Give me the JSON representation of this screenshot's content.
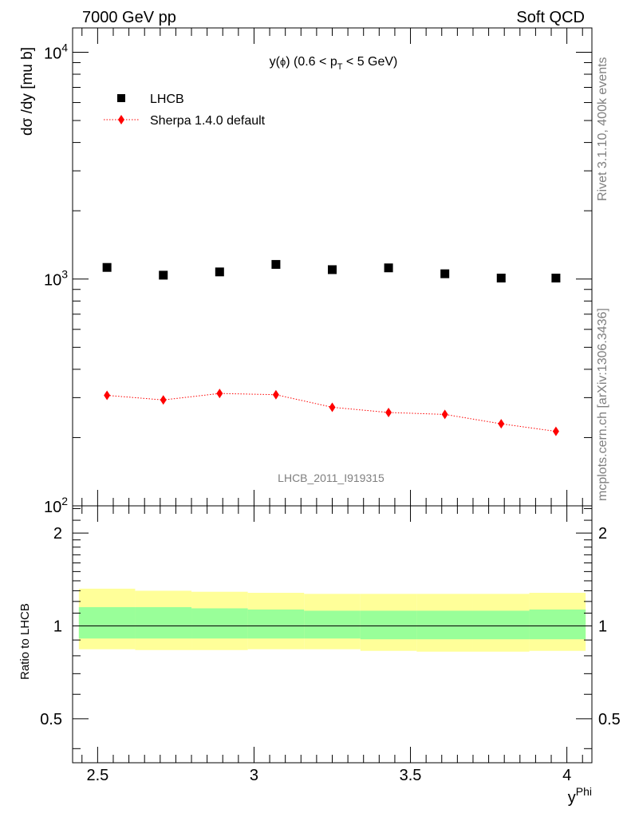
{
  "header": {
    "left_label": "7000 GeV pp",
    "right_label": "Soft QCD"
  },
  "side_labels": {
    "rivet": "Rivet 3.1.10,  400k events",
    "mcplots": "mcplots.cern.ch [arXiv:1306.3436]"
  },
  "chart_data": [
    {
      "type": "scatter",
      "title": "y(ϕ) (0.6 < p_T < 5 GeV)",
      "title_parts": {
        "main": "y(",
        "phi": "ϕ",
        "mid": ") (0.6 < p",
        "sub": "T",
        "tail": " < 5 GeV)"
      },
      "analysis_tag": "LHCB_2011_I919315",
      "ylabel": "dσ /dy [mu b]",
      "yscale": "log",
      "ylim": [
        100,
        12800
      ],
      "xlim": [
        2.42,
        4.08
      ],
      "y_major_ticks": [
        {
          "value": 100,
          "label": "10",
          "exp": "2"
        },
        {
          "value": 1000,
          "label": "10",
          "exp": "3"
        },
        {
          "value": 10000,
          "label": "10",
          "exp": "4"
        }
      ],
      "legend": [
        {
          "label": "LHCB",
          "marker": "square",
          "color": "#000000"
        },
        {
          "label": "Sherpa 1.4.0 default",
          "marker": "diamond",
          "color": "#ff0000",
          "line": "dotted"
        }
      ],
      "x": [
        2.53,
        2.71,
        2.89,
        3.07,
        3.25,
        3.43,
        3.61,
        3.79,
        3.965
      ],
      "series": [
        {
          "name": "LHCB",
          "values": [
            1125,
            1040,
            1075,
            1160,
            1100,
            1120,
            1055,
            1010,
            1010
          ]
        },
        {
          "name": "Sherpa 1.4.0 default",
          "values": [
            307,
            293,
            313,
            309,
            272,
            258,
            253,
            230,
            213
          ]
        }
      ]
    },
    {
      "type": "area",
      "ylabel": "Ratio to LHCB",
      "xlabel": "y",
      "xlabel_sup": "Phi",
      "xlim": [
        2.42,
        4.08
      ],
      "ylim": [
        0.36,
        2.45
      ],
      "y_ticks": [
        {
          "value": 0.5,
          "label": "0.5"
        },
        {
          "value": 1,
          "label": "1"
        },
        {
          "value": 2,
          "label": "2"
        }
      ],
      "x_ticks": [
        {
          "value": 2.5,
          "label": "2.5"
        },
        {
          "value": 3,
          "label": "3"
        },
        {
          "value": 3.5,
          "label": "3.5"
        },
        {
          "value": 4,
          "label": "4"
        }
      ],
      "bin_edges": [
        2.44,
        2.62,
        2.8,
        2.98,
        3.16,
        3.34,
        3.52,
        3.7,
        3.88,
        4.06
      ],
      "bands": [
        {
          "name": "stat",
          "color": "#99ff99",
          "lower": [
            0.91,
            0.91,
            0.91,
            0.91,
            0.91,
            0.905,
            0.905,
            0.905,
            0.905
          ],
          "upper": [
            1.15,
            1.15,
            1.14,
            1.13,
            1.12,
            1.12,
            1.12,
            1.12,
            1.13
          ]
        },
        {
          "name": "total",
          "color": "#ffff99",
          "lower": [
            0.84,
            0.835,
            0.835,
            0.84,
            0.84,
            0.83,
            0.825,
            0.825,
            0.83
          ],
          "upper": [
            1.32,
            1.3,
            1.29,
            1.28,
            1.27,
            1.27,
            1.27,
            1.27,
            1.28
          ]
        }
      ],
      "reference_line": 1
    }
  ]
}
